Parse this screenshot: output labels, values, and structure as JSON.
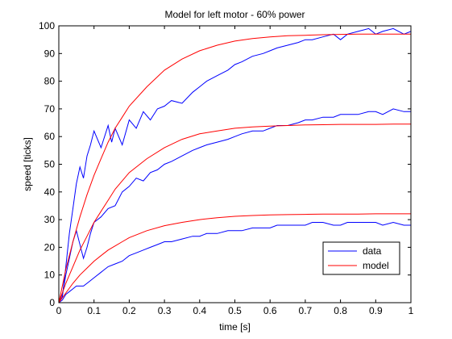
{
  "chart_data": {
    "type": "line",
    "title": "Model for left motor - 60% power",
    "xlabel": "time [s]",
    "ylabel": "speed [ticks]",
    "xlim": [
      0,
      1
    ],
    "ylim": [
      0,
      100
    ],
    "xticks": [
      0,
      0.1,
      0.2,
      0.3,
      0.4,
      0.5,
      0.6,
      0.7,
      0.8,
      0.9,
      1
    ],
    "xtick_labels": [
      "0",
      "0.1",
      "0.2",
      "0.3",
      "0.4",
      "0.5",
      "0.6",
      "0.7",
      "0.8",
      "0.9",
      "1"
    ],
    "yticks": [
      0,
      10,
      20,
      30,
      40,
      50,
      60,
      70,
      80,
      90,
      100
    ],
    "ytick_labels": [
      "0",
      "10",
      "20",
      "30",
      "40",
      "50",
      "60",
      "70",
      "80",
      "90",
      "100"
    ],
    "grid": false,
    "legend_position": "bottom-right",
    "colors": {
      "data": "#0000ff",
      "model": "#ff0000",
      "axes": "#000000"
    },
    "legend": [
      {
        "label": "data",
        "color": "#0000ff"
      },
      {
        "label": "model",
        "color": "#ff0000"
      }
    ],
    "series": [
      {
        "legend": "data",
        "color": "#0000ff",
        "x": [
          0,
          0.01,
          0.02,
          0.03,
          0.04,
          0.05,
          0.06,
          0.07,
          0.08,
          0.09,
          0.1,
          0.12,
          0.14,
          0.15,
          0.16,
          0.18,
          0.2,
          0.22,
          0.24,
          0.26,
          0.28,
          0.3,
          0.32,
          0.35,
          0.38,
          0.4,
          0.42,
          0.45,
          0.48,
          0.5,
          0.52,
          0.55,
          0.58,
          0.6,
          0.62,
          0.65,
          0.68,
          0.7,
          0.72,
          0.75,
          0.78,
          0.8,
          0.82,
          0.85,
          0.88,
          0.9,
          0.92,
          0.95,
          0.98,
          1
        ],
        "values": [
          0,
          2,
          13,
          25,
          34,
          43,
          49,
          45,
          53,
          57,
          62,
          56,
          64,
          58,
          63,
          57,
          66,
          63,
          69,
          66,
          70,
          71,
          73,
          72,
          76,
          78,
          80,
          82,
          84,
          86,
          87,
          89,
          90,
          91,
          92,
          93,
          94,
          95,
          95,
          96,
          97,
          95,
          97,
          98,
          99,
          97,
          98,
          99,
          97,
          98
        ]
      },
      {
        "legend": "data",
        "color": "#0000ff",
        "x": [
          0,
          0.01,
          0.02,
          0.03,
          0.04,
          0.05,
          0.06,
          0.07,
          0.08,
          0.09,
          0.1,
          0.12,
          0.14,
          0.16,
          0.18,
          0.2,
          0.22,
          0.24,
          0.26,
          0.28,
          0.3,
          0.32,
          0.35,
          0.38,
          0.4,
          0.42,
          0.45,
          0.48,
          0.5,
          0.52,
          0.55,
          0.58,
          0.6,
          0.62,
          0.65,
          0.68,
          0.7,
          0.72,
          0.75,
          0.78,
          0.8,
          0.82,
          0.85,
          0.88,
          0.9,
          0.92,
          0.95,
          0.98,
          1
        ],
        "values": [
          0,
          3,
          10,
          16,
          22,
          26,
          21,
          16,
          20,
          25,
          29,
          31,
          34,
          35,
          40,
          42,
          45,
          44,
          47,
          48,
          50,
          51,
          53,
          55,
          56,
          57,
          58,
          59,
          60,
          61,
          62,
          62,
          63,
          64,
          64,
          65,
          66,
          66,
          67,
          67,
          68,
          68,
          68,
          69,
          69,
          68,
          70,
          69,
          69
        ]
      },
      {
        "legend": "data",
        "color": "#0000ff",
        "x": [
          0,
          0.01,
          0.02,
          0.03,
          0.04,
          0.05,
          0.06,
          0.07,
          0.08,
          0.09,
          0.1,
          0.12,
          0.14,
          0.16,
          0.18,
          0.2,
          0.22,
          0.24,
          0.26,
          0.28,
          0.3,
          0.32,
          0.35,
          0.38,
          0.4,
          0.42,
          0.45,
          0.48,
          0.5,
          0.52,
          0.55,
          0.58,
          0.6,
          0.62,
          0.65,
          0.68,
          0.7,
          0.72,
          0.75,
          0.78,
          0.8,
          0.82,
          0.85,
          0.88,
          0.9,
          0.92,
          0.95,
          0.98,
          1
        ],
        "values": [
          0,
          1,
          3,
          4,
          5,
          6,
          6,
          6,
          7,
          8,
          9,
          11,
          13,
          14,
          15,
          17,
          18,
          19,
          20,
          21,
          22,
          22,
          23,
          24,
          24,
          25,
          25,
          26,
          26,
          26,
          27,
          27,
          27,
          28,
          28,
          28,
          28,
          29,
          29,
          28,
          28,
          29,
          29,
          29,
          29,
          28,
          29,
          28,
          28
        ]
      },
      {
        "legend": "model",
        "color": "#ff0000",
        "x": [
          0,
          0.02,
          0.04,
          0.06,
          0.08,
          0.1,
          0.12,
          0.14,
          0.16,
          0.18,
          0.2,
          0.25,
          0.3,
          0.35,
          0.4,
          0.45,
          0.5,
          0.55,
          0.6,
          0.65,
          0.7,
          0.75,
          0.8,
          0.85,
          0.9,
          0.95,
          1
        ],
        "values": [
          0,
          12,
          22,
          31,
          39,
          46,
          52,
          58,
          63,
          67,
          71,
          78,
          84,
          88,
          91,
          93,
          94.5,
          95.4,
          96,
          96.4,
          96.6,
          96.8,
          96.9,
          97,
          97,
          97,
          97
        ]
      },
      {
        "legend": "model",
        "color": "#ff0000",
        "x": [
          0,
          0.02,
          0.04,
          0.06,
          0.08,
          0.1,
          0.12,
          0.14,
          0.16,
          0.18,
          0.2,
          0.25,
          0.3,
          0.35,
          0.4,
          0.45,
          0.5,
          0.55,
          0.6,
          0.65,
          0.7,
          0.75,
          0.8,
          0.85,
          0.9,
          0.95,
          1
        ],
        "values": [
          0,
          7,
          13,
          19,
          24,
          29,
          33,
          37,
          41,
          44,
          47,
          52,
          56,
          59,
          61,
          62,
          63,
          63.5,
          63.8,
          64,
          64.2,
          64.3,
          64.4,
          64.4,
          64.4,
          64.5,
          64.5
        ]
      },
      {
        "legend": "model",
        "color": "#ff0000",
        "x": [
          0,
          0.02,
          0.04,
          0.06,
          0.08,
          0.1,
          0.12,
          0.14,
          0.16,
          0.18,
          0.2,
          0.25,
          0.3,
          0.35,
          0.4,
          0.45,
          0.5,
          0.55,
          0.6,
          0.65,
          0.7,
          0.75,
          0.8,
          0.85,
          0.9,
          0.95,
          1
        ],
        "values": [
          0,
          3.5,
          7,
          10,
          12.5,
          15,
          17,
          19,
          20.5,
          22,
          23.5,
          26,
          27.8,
          29,
          30,
          30.7,
          31.2,
          31.5,
          31.7,
          31.8,
          31.9,
          32,
          32,
          32,
          32.1,
          32.1,
          32.1
        ]
      }
    ]
  }
}
